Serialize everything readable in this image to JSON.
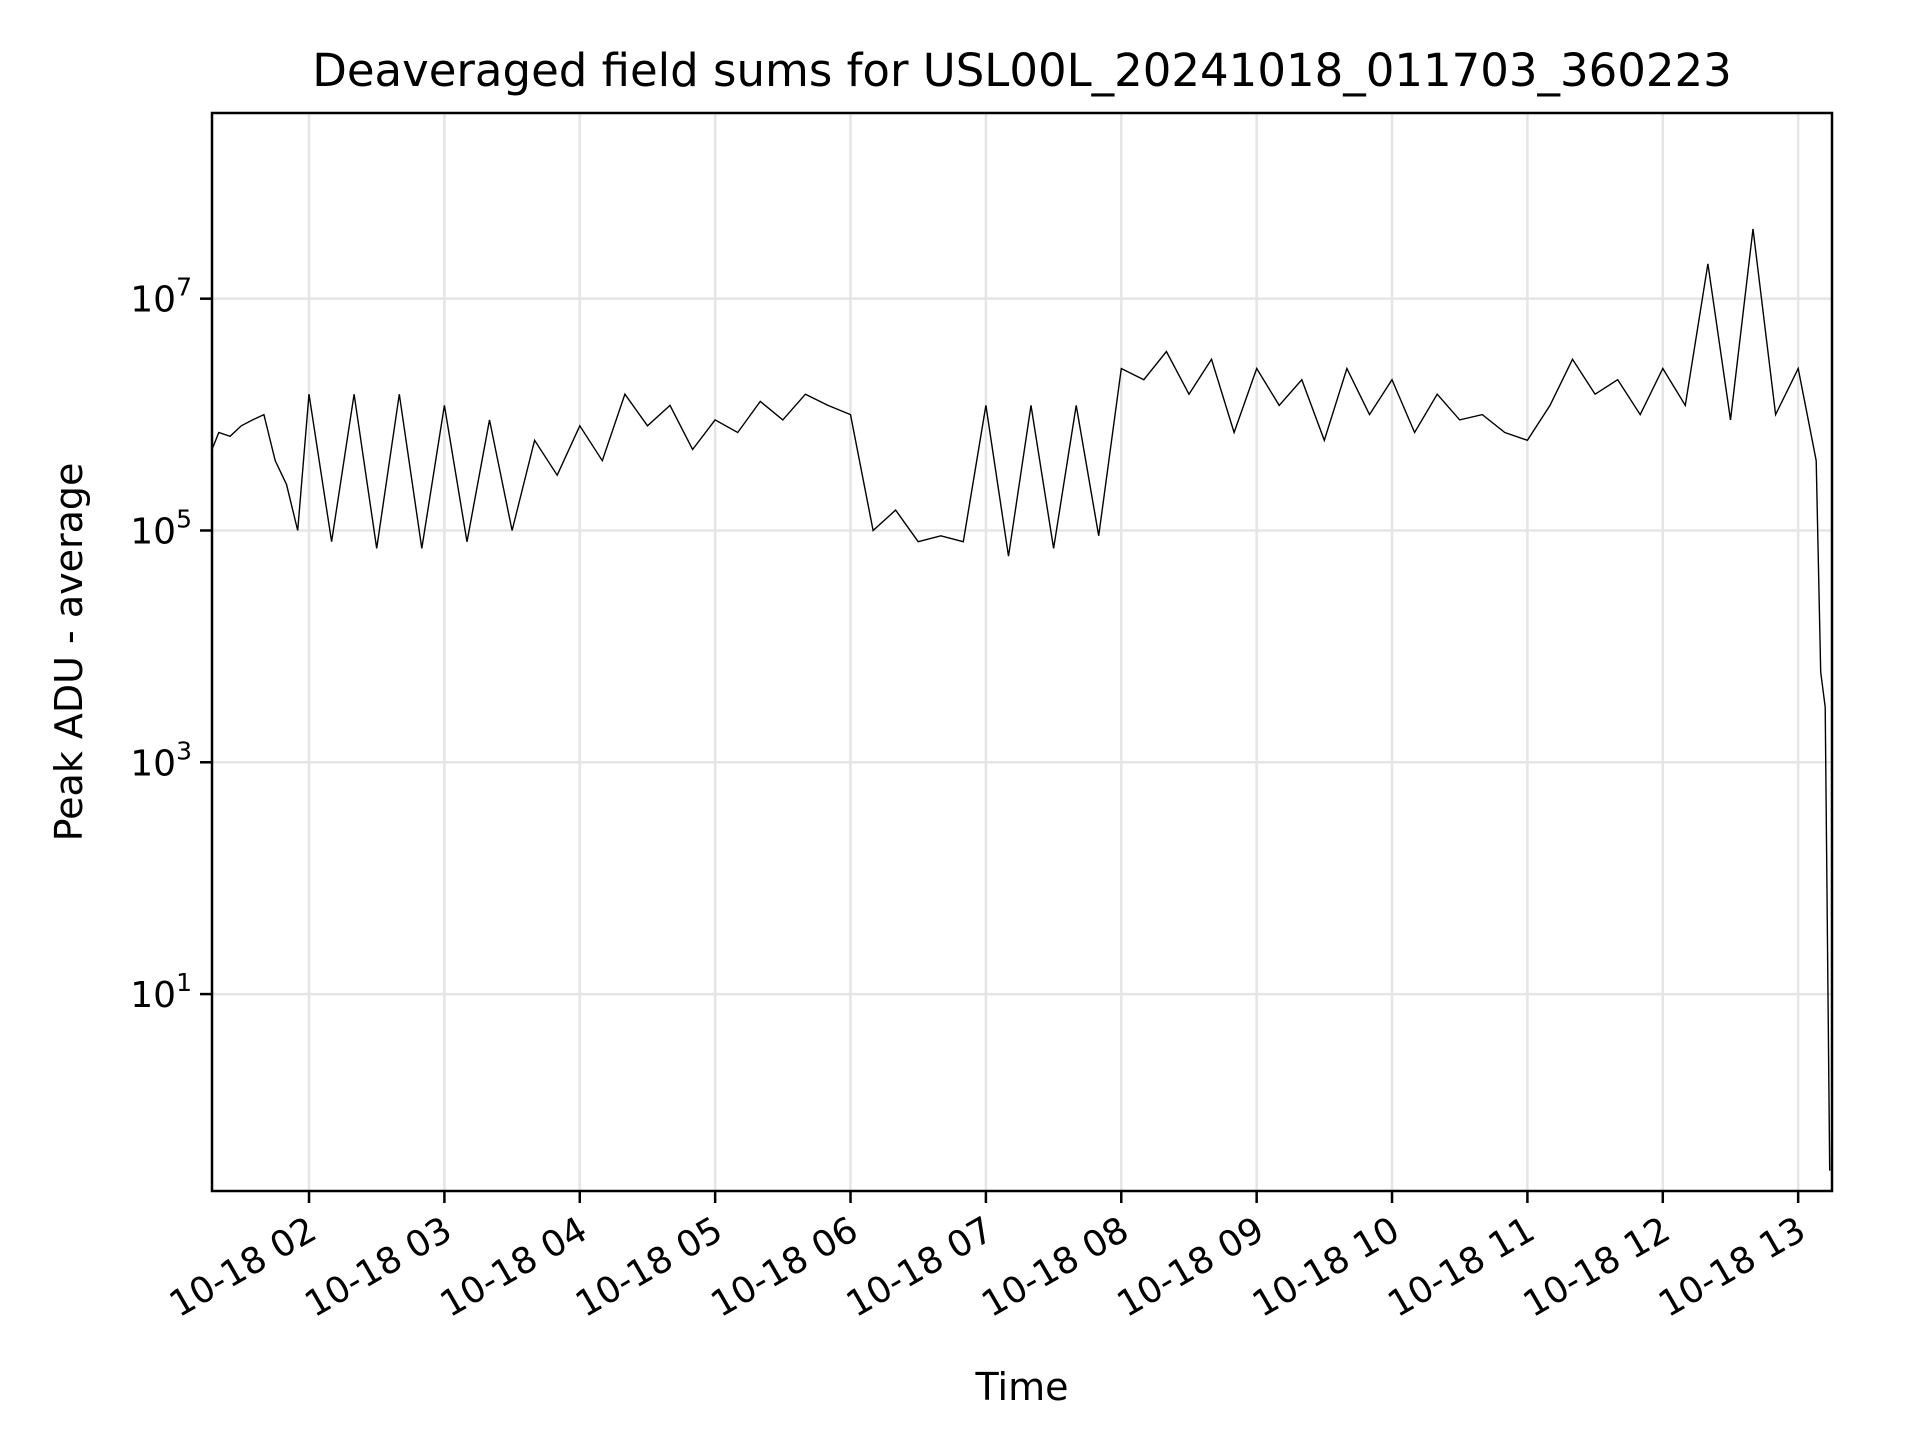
{
  "chart_data": {
    "type": "line",
    "title": "Deaveraged field sums for USL00L_20241018_011703_360223",
    "xlabel": "Time",
    "ylabel": "Peak ADU - average",
    "y_scale": "log",
    "grid": true,
    "legend": "none",
    "line_color": "#000000",
    "grid_color": "#e5e5e5",
    "xlim": [
      "2024-10-18 01:17",
      "2024-10-18 13:15"
    ],
    "ylim": [
      0.2,
      400000000.0
    ],
    "x_ticks": [
      {
        "value": "2024-10-18 02:00",
        "label": "10-18 02"
      },
      {
        "value": "2024-10-18 03:00",
        "label": "10-18 03"
      },
      {
        "value": "2024-10-18 04:00",
        "label": "10-18 04"
      },
      {
        "value": "2024-10-18 05:00",
        "label": "10-18 05"
      },
      {
        "value": "2024-10-18 06:00",
        "label": "10-18 06"
      },
      {
        "value": "2024-10-18 07:00",
        "label": "10-18 07"
      },
      {
        "value": "2024-10-18 08:00",
        "label": "10-18 08"
      },
      {
        "value": "2024-10-18 09:00",
        "label": "10-18 09"
      },
      {
        "value": "2024-10-18 10:00",
        "label": "10-18 10"
      },
      {
        "value": "2024-10-18 11:00",
        "label": "10-18 11"
      },
      {
        "value": "2024-10-18 12:00",
        "label": "10-18 12"
      },
      {
        "value": "2024-10-18 13:00",
        "label": "10-18 13"
      }
    ],
    "y_ticks": [
      {
        "value": 10,
        "base": "10",
        "exp": "1"
      },
      {
        "value": 1000,
        "base": "10",
        "exp": "3"
      },
      {
        "value": 100000,
        "base": "10",
        "exp": "5"
      },
      {
        "value": 10000000,
        "base": "10",
        "exp": "7"
      }
    ],
    "series": [
      {
        "x": [
          "2024-10-18 01:17",
          "2024-10-18 01:20",
          "2024-10-18 01:25",
          "2024-10-18 01:30",
          "2024-10-18 01:35",
          "2024-10-18 01:40",
          "2024-10-18 01:45",
          "2024-10-18 01:50",
          "2024-10-18 01:55",
          "2024-10-18 02:00",
          "2024-10-18 02:10",
          "2024-10-18 02:20",
          "2024-10-18 02:30",
          "2024-10-18 02:40",
          "2024-10-18 02:50",
          "2024-10-18 03:00",
          "2024-10-18 03:10",
          "2024-10-18 03:20",
          "2024-10-18 03:30",
          "2024-10-18 03:40",
          "2024-10-18 03:50",
          "2024-10-18 04:00",
          "2024-10-18 04:10",
          "2024-10-18 04:20",
          "2024-10-18 04:30",
          "2024-10-18 04:40",
          "2024-10-18 04:50",
          "2024-10-18 05:00",
          "2024-10-18 05:10",
          "2024-10-18 05:20",
          "2024-10-18 05:30",
          "2024-10-18 05:40",
          "2024-10-18 05:50",
          "2024-10-18 06:00",
          "2024-10-18 06:10",
          "2024-10-18 06:20",
          "2024-10-18 06:30",
          "2024-10-18 06:40",
          "2024-10-18 06:50",
          "2024-10-18 07:00",
          "2024-10-18 07:10",
          "2024-10-18 07:20",
          "2024-10-18 07:30",
          "2024-10-18 07:40",
          "2024-10-18 07:50",
          "2024-10-18 08:00",
          "2024-10-18 08:10",
          "2024-10-18 08:20",
          "2024-10-18 08:30",
          "2024-10-18 08:40",
          "2024-10-18 08:50",
          "2024-10-18 09:00",
          "2024-10-18 09:10",
          "2024-10-18 09:20",
          "2024-10-18 09:30",
          "2024-10-18 09:40",
          "2024-10-18 09:50",
          "2024-10-18 10:00",
          "2024-10-18 10:10",
          "2024-10-18 10:20",
          "2024-10-18 10:30",
          "2024-10-18 10:40",
          "2024-10-18 10:50",
          "2024-10-18 11:00",
          "2024-10-18 11:10",
          "2024-10-18 11:20",
          "2024-10-18 11:30",
          "2024-10-18 11:40",
          "2024-10-18 11:50",
          "2024-10-18 12:00",
          "2024-10-18 12:10",
          "2024-10-18 12:20",
          "2024-10-18 12:30",
          "2024-10-18 12:40",
          "2024-10-18 12:50",
          "2024-10-18 13:00",
          "2024-10-18 13:05",
          "2024-10-18 13:08",
          "2024-10-18 13:10",
          "2024-10-18 13:12",
          "2024-10-18 13:14"
        ],
        "y": [
          500000,
          700000,
          650000,
          800000,
          900000,
          1000000,
          400000,
          250000,
          100000,
          1500000,
          80000,
          1500000,
          70000,
          1500000,
          70000,
          1200000,
          80000,
          900000,
          100000,
          600000,
          300000,
          800000,
          400000,
          1500000,
          800000,
          1200000,
          500000,
          900000,
          700000,
          1300000,
          900000,
          1500000,
          1200000,
          1000000,
          100000,
          150000,
          80000,
          90000,
          80000,
          1200000,
          60000,
          1200000,
          70000,
          1200000,
          90000,
          2500000,
          2000000,
          3500000,
          1500000,
          3000000,
          700000,
          2500000,
          1200000,
          2000000,
          600000,
          2500000,
          1000000,
          2000000,
          700000,
          1500000,
          900000,
          1000000,
          700000,
          600000,
          1200000,
          3000000,
          1500000,
          2000000,
          1000000,
          2500000,
          1200000,
          20000000,
          900000,
          40000000,
          1000000,
          2500000,
          800000,
          400000,
          6000,
          3000,
          0.3
        ]
      }
    ]
  }
}
